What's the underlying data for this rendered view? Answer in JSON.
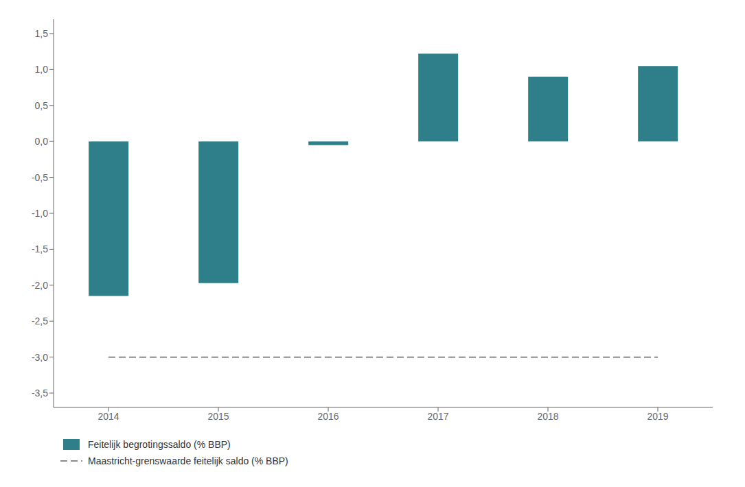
{
  "chart_data": {
    "type": "bar",
    "categories": [
      "2014",
      "2015",
      "2016",
      "2017",
      "2018",
      "2019"
    ],
    "series": [
      {
        "name": "Feitelijk begrotingssaldo (% BBP)",
        "type": "bar",
        "color": "#2e7f8a",
        "values": [
          -2.15,
          -1.97,
          -0.05,
          1.22,
          0.9,
          1.05
        ]
      },
      {
        "name": "Maastricht-grenswaarde feitelijk saldo (% BBP)",
        "type": "line",
        "line_style": "dashed",
        "color": "#8c8c8c",
        "values": [
          -3.0,
          -3.0,
          -3.0,
          -3.0,
          -3.0,
          -3.0
        ]
      }
    ],
    "ylim": [
      -3.7,
      1.7
    ],
    "yticks": [
      {
        "value": -3.5,
        "label": "-3,5"
      },
      {
        "value": -3.0,
        "label": "-3,0"
      },
      {
        "value": -2.5,
        "label": "-2,5"
      },
      {
        "value": -2.0,
        "label": "-2,0"
      },
      {
        "value": -1.5,
        "label": "-1,5"
      },
      {
        "value": -1.0,
        "label": "-1,0"
      },
      {
        "value": -0.5,
        "label": "-0,5"
      },
      {
        "value": 0.0,
        "label": "0,0"
      },
      {
        "value": 0.5,
        "label": "0,5"
      },
      {
        "value": 1.0,
        "label": "1,0"
      },
      {
        "value": 1.5,
        "label": "1,5"
      }
    ],
    "grid": false,
    "legend": "lower left"
  }
}
